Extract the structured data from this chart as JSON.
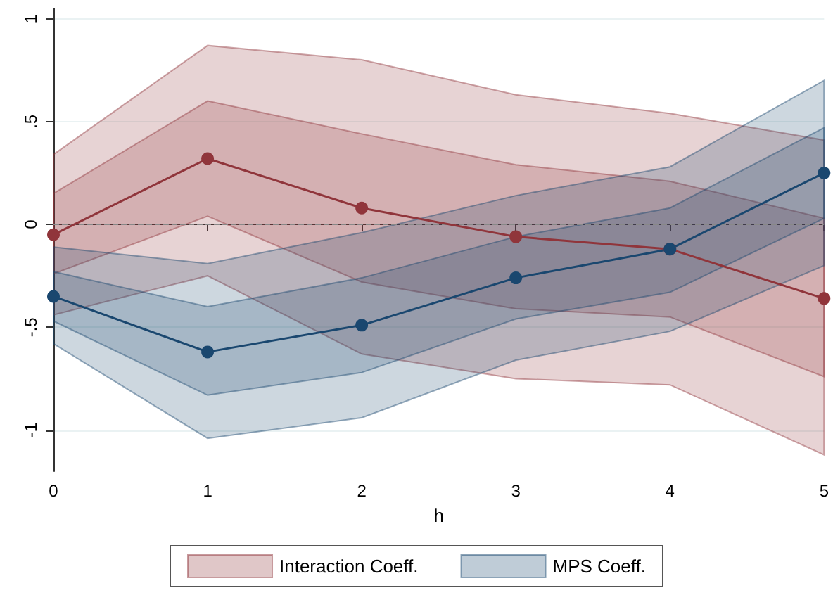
{
  "chart_data": {
    "type": "line",
    "xlabel": "h",
    "x": [
      0,
      1,
      2,
      3,
      4,
      5
    ],
    "series": [
      {
        "color": "#90353b",
        "values": [
          null,
          null,
          null,
          null,
          null,
          null
        ],
        "lower": [
          -0.44,
          -0.25,
          -0.63,
          -0.75,
          -0.78,
          -1.12
        ],
        "upper": [
          0.34,
          0.87,
          0.8,
          0.63,
          0.54,
          0.41
        ]
      },
      {
        "name": "Interaction Coeff.",
        "color": "#90353b",
        "values": [
          -0.05,
          0.32,
          0.08,
          -0.06,
          -0.12,
          -0.36
        ],
        "lower": [
          -0.24,
          0.04,
          -0.28,
          -0.41,
          -0.45,
          -0.74
        ],
        "upper": [
          0.15,
          0.6,
          0.44,
          0.29,
          0.21,
          0.03
        ]
      },
      {
        "color": "#1a476f",
        "values": [
          null,
          null,
          null,
          null,
          null,
          null
        ],
        "lower": [
          -0.58,
          -1.04,
          -0.94,
          -0.66,
          -0.52,
          -0.2
        ],
        "upper": [
          -0.11,
          -0.19,
          -0.04,
          0.14,
          0.28,
          0.7
        ]
      },
      {
        "name": "MPS Coeff.",
        "color": "#1a476f",
        "values": [
          -0.35,
          -0.62,
          -0.49,
          -0.26,
          -0.12,
          0.25
        ],
        "lower": [
          -0.47,
          -0.83,
          -0.72,
          -0.46,
          -0.33,
          0.03
        ],
        "upper": [
          -0.23,
          -0.4,
          -0.26,
          -0.06,
          0.08,
          0.47
        ]
      }
    ],
    "xlim": [
      0,
      5
    ],
    "xticks": [
      0,
      1,
      2,
      3,
      4,
      5
    ],
    "ylim": [
      -1.2,
      1.05
    ],
    "yticks": [
      {
        "value": -1,
        "label": "-1"
      },
      {
        "value": -0.5,
        "label": "-.5"
      },
      {
        "value": 0,
        "label": "0"
      },
      {
        "value": 0.5,
        "label": ".5"
      },
      {
        "value": 1,
        "label": "1"
      }
    ],
    "ref_lines": [
      {
        "axis": "y",
        "value": 0,
        "line_style": "dashed",
        "color": "#888888"
      }
    ],
    "grid": "y",
    "legend": "bottom",
    "marker": "circle",
    "line_style": "solid"
  }
}
